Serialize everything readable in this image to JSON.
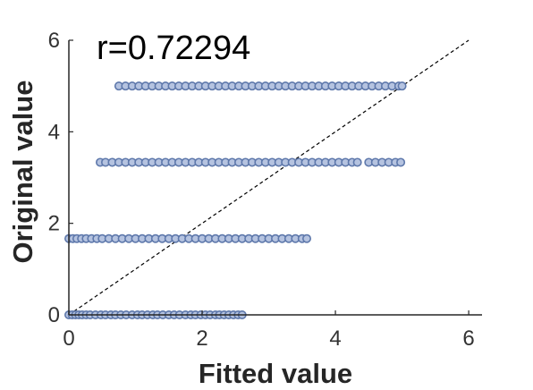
{
  "chart_data": {
    "type": "scatter",
    "title": "",
    "annotation": "r=0.72294",
    "xlabel": "Fitted value",
    "ylabel": "Original value",
    "xlim": [
      0,
      6.2
    ],
    "ylim": [
      0,
      6
    ],
    "xticks": [
      "0",
      "2",
      "4",
      "6"
    ],
    "yticks": [
      "0",
      "2",
      "4",
      "6"
    ],
    "grid": false,
    "legend": "none",
    "reference_line": {
      "style": "dashed",
      "from": [
        0,
        0
      ],
      "to": [
        6,
        6
      ],
      "color": "#000000"
    },
    "marker_color": "#b5c3e0",
    "marker_edge_color": "#5e78ab",
    "series": [
      {
        "y": 0,
        "x": [
          0,
          0.05,
          0.1,
          0.15,
          0.2,
          0.26,
          0.32,
          0.4,
          0.48,
          0.55,
          0.63,
          0.7,
          0.78,
          0.86,
          0.95,
          1.03,
          1.1,
          1.18,
          1.26,
          1.33,
          1.41,
          1.5,
          1.58,
          1.66,
          1.75,
          1.83,
          1.9,
          1.98,
          2.05,
          2.12,
          2.2,
          2.26,
          2.33,
          2.4,
          2.47,
          2.54,
          2.6
        ]
      },
      {
        "y": 1.6667,
        "x": [
          0,
          0.06,
          0.12,
          0.19,
          0.26,
          0.34,
          0.42,
          0.5,
          0.6,
          0.7,
          0.8,
          0.9,
          1.0,
          1.1,
          1.2,
          1.3,
          1.4,
          1.5,
          1.6,
          1.7,
          1.8,
          1.9,
          2.0,
          2.1,
          2.2,
          2.3,
          2.4,
          2.5,
          2.6,
          2.7,
          2.8,
          2.9,
          3.0,
          3.1,
          3.2,
          3.3,
          3.4,
          3.5,
          3.57
        ]
      },
      {
        "y": 3.3333,
        "x": [
          0.47,
          0.55,
          0.65,
          0.75,
          0.85,
          0.95,
          1.05,
          1.15,
          1.25,
          1.35,
          1.45,
          1.55,
          1.65,
          1.75,
          1.85,
          1.95,
          2.05,
          2.15,
          2.25,
          2.35,
          2.45,
          2.55,
          2.65,
          2.75,
          2.85,
          2.95,
          3.05,
          3.15,
          3.25,
          3.35,
          3.45,
          3.55,
          3.65,
          3.75,
          3.85,
          3.95,
          4.05,
          4.15,
          4.25,
          4.33,
          4.5,
          4.6,
          4.7,
          4.8,
          4.9,
          4.98
        ]
      },
      {
        "y": 5,
        "x": [
          0.75,
          0.85,
          0.95,
          1.05,
          1.15,
          1.25,
          1.35,
          1.45,
          1.55,
          1.65,
          1.75,
          1.85,
          1.95,
          2.05,
          2.15,
          2.25,
          2.35,
          2.45,
          2.55,
          2.65,
          2.75,
          2.85,
          2.95,
          3.05,
          3.15,
          3.25,
          3.35,
          3.45,
          3.55,
          3.65,
          3.75,
          3.85,
          3.95,
          4.05,
          4.15,
          4.25,
          4.35,
          4.45,
          4.55,
          4.65,
          4.75,
          4.85,
          4.95,
          5.0
        ]
      }
    ]
  }
}
